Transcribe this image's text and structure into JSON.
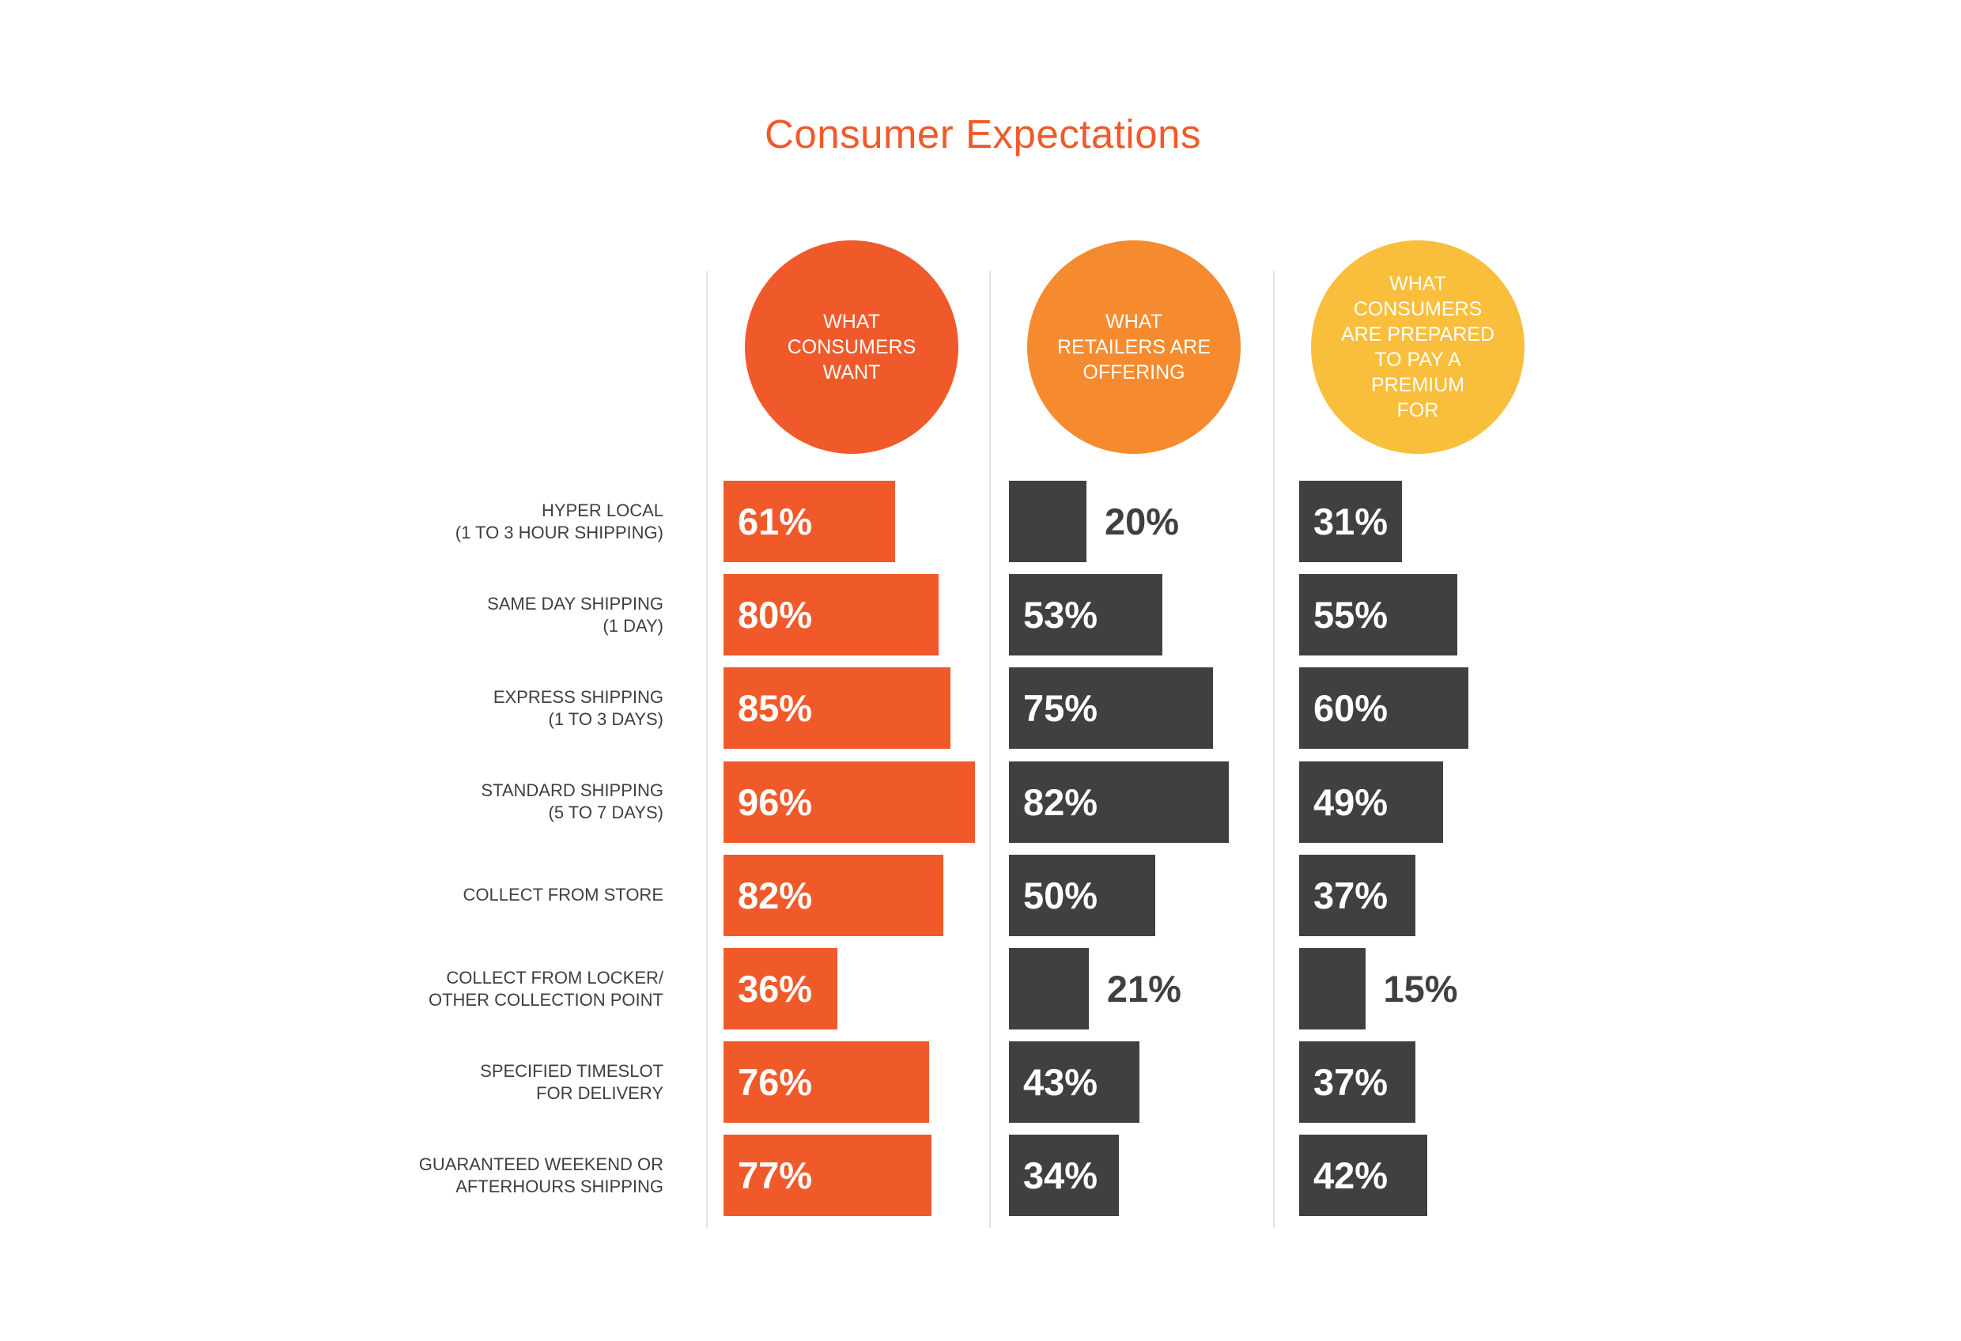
{
  "title": "Consumer Expectations",
  "colors": {
    "title": "#F05A2A",
    "want": "#F05A2A",
    "offering": "#F58B2E",
    "premium": "#F9BE3B",
    "dark_bar": "#404042",
    "label_text": "#3F3F3F"
  },
  "chart_data": {
    "type": "bar",
    "orientation": "horizontal",
    "title": "Consumer Expectations",
    "xlabel": "",
    "ylabel": "",
    "unit": "%",
    "xlim": [
      0,
      100
    ],
    "grid": false,
    "legend": "top (circle headers above each column)",
    "categories": [
      "HYPER LOCAL\n(1 TO 3 HOUR SHIPPING)",
      "SAME DAY SHIPPING\n(1 DAY)",
      "EXPRESS SHIPPING\n(1 TO 3 DAYS)",
      "STANDARD SHIPPING\n(5 TO 7 DAYS)",
      "COLLECT FROM STORE",
      "COLLECT FROM LOCKER/\nOTHER COLLECTION POINT",
      "SPECIFIED TIMESLOT\nFOR DELIVERY",
      "GUARANTEED WEEKEND OR\nAFTERHOURS SHIPPING"
    ],
    "series": [
      {
        "name": "WHAT\nCONSUMERS\nWANT",
        "header_color": "#F05A2A",
        "bar_color": "#F05A2A",
        "values": [
          61,
          80,
          85,
          96,
          82,
          36,
          76,
          77
        ],
        "labels": [
          "61%",
          "80%",
          "85%",
          "96%",
          "82%",
          "36%",
          "76%",
          "77%"
        ]
      },
      {
        "name": "WHAT\nRETAILERS ARE\nOFFERING",
        "header_color": "#F58B2E",
        "bar_color": "#404042",
        "values": [
          20,
          53,
          75,
          82,
          50,
          21,
          43,
          34
        ],
        "labels": [
          "20%",
          "53%",
          "75%",
          "82%",
          "50%",
          "21%",
          "43%",
          "34%"
        ]
      },
      {
        "name": "WHAT\nCONSUMERS\nARE PREPARED\nTO PAY A\nPREMIUM\nFOR",
        "header_color": "#F9BE3B",
        "bar_color": "#404042",
        "values": [
          31,
          55,
          60,
          49,
          37,
          15,
          37,
          42
        ],
        "labels": [
          "31%",
          "55%",
          "60%",
          "49%",
          "37%",
          "15%",
          "37%",
          "42%"
        ]
      }
    ]
  }
}
